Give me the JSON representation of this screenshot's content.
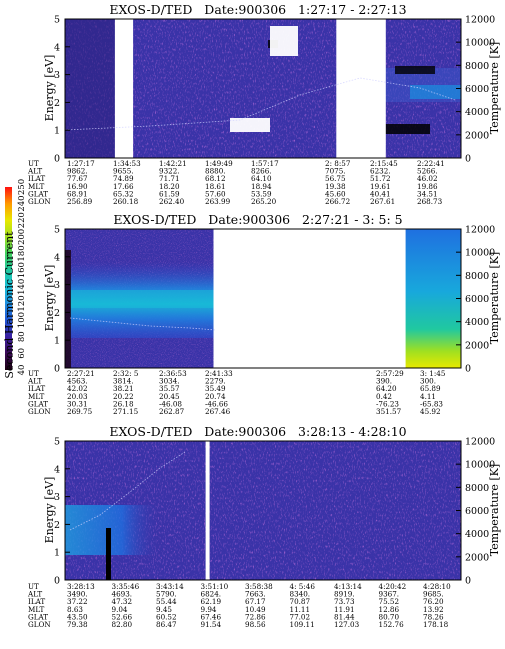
{
  "colors": {
    "background": "#3a33a8",
    "dark": "#2a1f7a",
    "speckle": "#8a2ab8",
    "gap": "#ffffff",
    "temperature_trace": "#cfcfff"
  },
  "colorbar": {
    "label": "Second Harmonic Current",
    "ticks": [
      "40",
      "60",
      "80",
      "100",
      "120",
      "140",
      "160",
      "180",
      "200",
      "220",
      "240",
      "250"
    ],
    "stops": [
      "#1a0010",
      "#3a0a55",
      "#3a1fa0",
      "#1f55d5",
      "#1f8fe0",
      "#18c0d8",
      "#20c8a0",
      "#40d060",
      "#a0e020",
      "#e8e800",
      "#ff9a00",
      "#ff1010"
    ]
  },
  "chart_data": [
    {
      "type": "heatmap",
      "title": "EXOS-D/TED   Date:900306   1:27:17 - 2:27:13",
      "ylabel": "Energy [eV]",
      "y2label": "Temperature [K]",
      "ylim": [
        0,
        5
      ],
      "y2lim": [
        0,
        12000
      ],
      "yticks": [
        "0",
        "1",
        "2",
        "3",
        "4",
        "5"
      ],
      "y2ticks": [
        "0",
        "2000",
        "4000",
        "6000",
        "8000",
        "10000",
        "12000"
      ],
      "gaps": [
        [
          0.126,
          0.172
        ],
        [
          0.685,
          0.81
        ]
      ],
      "orbit": {
        "rows": [
          "UT",
          "ALT",
          "ILAT",
          "MLT",
          "GLAT",
          "GLON"
        ],
        "columns": [
          [
            "1:27:17",
            "9862.",
            "77.67",
            "16.90",
            "68.91",
            "256.89"
          ],
          [
            "1:34:53",
            "9655.",
            "74.89",
            "17.66",
            "65.32",
            "260.18"
          ],
          [
            "1:42:21",
            "9322.",
            "71.71",
            "18.20",
            "61.59",
            "262.40"
          ],
          [
            "1:49:49",
            "8880.",
            "68.12",
            "18.61",
            "57.60",
            "263.99"
          ],
          [
            "1:57:17",
            "8266.",
            "64.10",
            "18.94",
            "53.59",
            "265.20"
          ],
          [
            "2: 8:57",
            "7075.",
            "56.75",
            "19.38",
            "45.60",
            "266.72"
          ],
          [
            "2:15:45",
            "6232.",
            "51.72",
            "19.61",
            "40.41",
            "267.61"
          ],
          [
            "2:22:41",
            "5266.",
            "46.02",
            "19.86",
            "34.51",
            "268.73"
          ]
        ]
      }
    },
    {
      "type": "heatmap",
      "title": "EXOS-D/TED   Date:900306   2:27:21 - 3: 5: 5",
      "ylabel": "Energy [eV]",
      "y2label": "Temperature [K]",
      "ylim": [
        0,
        5
      ],
      "y2lim": [
        0,
        12000
      ],
      "yticks": [
        "0",
        "1",
        "2",
        "3",
        "4",
        "5"
      ],
      "y2ticks": [
        "0",
        "2000",
        "4000",
        "6000",
        "8000",
        "10000",
        "12000"
      ],
      "gaps": [
        [
          0.375,
          0.86
        ]
      ],
      "orbit": {
        "rows": [
          "UT",
          "ALT",
          "ILAT",
          "MLT",
          "GLAT",
          "GLON"
        ],
        "columns": [
          [
            "2:27:21",
            "4563.",
            "42.02",
            "20.03",
            "30.31",
            "269.75"
          ],
          [
            "2:32: 5",
            "3814.",
            "38.21",
            "20.22",
            "26.18",
            "271.15"
          ],
          [
            "2:36:53",
            "3034.",
            "35.57",
            "20.45",
            "-46.08",
            "262.87"
          ],
          [
            "2:41:33",
            "2279.",
            "35.49",
            "20.74",
            "-46.66",
            "267.46"
          ],
          [
            "2:57:29",
            "390.",
            "64.20",
            "0.42",
            "-76.23",
            "351.57"
          ],
          [
            "3: 1:45",
            "300.",
            "65.89",
            "4.11",
            "-65.83",
            "45.92"
          ]
        ]
      }
    },
    {
      "type": "heatmap",
      "title": "EXOS-D/TED   Date:900306   3:28:13 - 4:28:10",
      "ylabel": "Energy [eV]",
      "y2label": "Temperature [K]",
      "ylim": [
        0,
        5
      ],
      "y2lim": [
        0,
        12000
      ],
      "yticks": [
        "0",
        "1",
        "2",
        "3",
        "4",
        "5"
      ],
      "y2ticks": [
        "0",
        "2000",
        "4000",
        "6000",
        "8000",
        "10000",
        "12000"
      ],
      "gaps": [
        [
          0.355,
          0.365
        ]
      ],
      "orbit": {
        "rows": [
          "UT",
          "ALT",
          "ILAT",
          "MLT",
          "GLAT",
          "GLON"
        ],
        "columns": [
          [
            "3:28:13",
            "3490.",
            "37.22",
            "8.63",
            "43.50",
            "79.38"
          ],
          [
            "3:35:46",
            "4693.",
            "47.32",
            "9.04",
            "52.66",
            "82.80"
          ],
          [
            "3:43:14",
            "5790.",
            "55.44",
            "9.45",
            "60.52",
            "86.47"
          ],
          [
            "3:51:10",
            "6824.",
            "62.19",
            "9.94",
            "67.46",
            "91.54"
          ],
          [
            "3:58:38",
            "7663.",
            "67.17",
            "10.49",
            "72.86",
            "98.56"
          ],
          [
            "4: 5:46",
            "8340.",
            "70.87",
            "11.11",
            "77.02",
            "109.11"
          ],
          [
            "4:13:14",
            "8919.",
            "73.73",
            "11.91",
            "81.44",
            "127.03"
          ],
          [
            "4:20:42",
            "9367.",
            "75.52",
            "12.86",
            "80.70",
            "152.76"
          ],
          [
            "4:28:10",
            "9685.",
            "76.20",
            "13.92",
            "78.26",
            "178.18"
          ]
        ]
      }
    }
  ]
}
